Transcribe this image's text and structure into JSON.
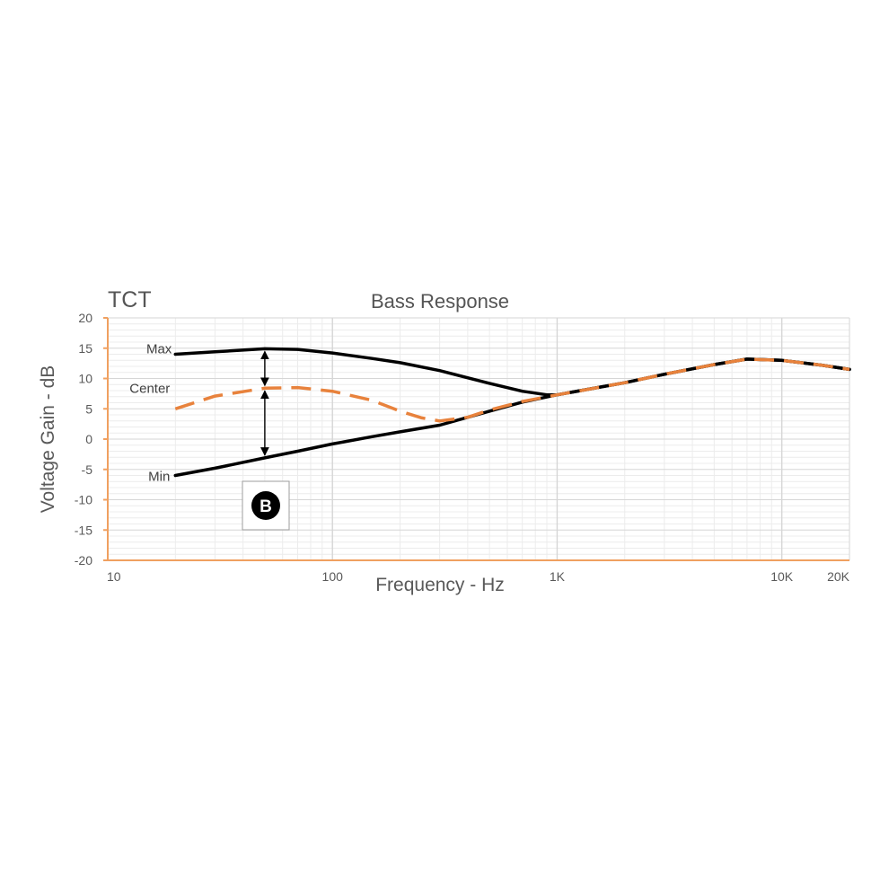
{
  "brand_label": "TCT",
  "badge_label": "B",
  "chart_data": {
    "type": "line",
    "title": "Bass Response",
    "xlabel": "Frequency - Hz",
    "ylabel": "Voltage Gain - dB",
    "xscale": "log",
    "xlim": [
      10,
      20000
    ],
    "ylim": [
      -20,
      20
    ],
    "yticks": [
      20,
      15,
      10,
      5,
      0,
      -5,
      -10,
      -15,
      -20
    ],
    "ytick_labels": [
      "20",
      "15",
      "10",
      "5",
      "0",
      "-5",
      "-10",
      "-15",
      "-20"
    ],
    "xticks": [
      10,
      100,
      1000,
      10000,
      20000
    ],
    "xtick_labels": [
      "10",
      "100",
      "1K",
      "10K",
      "20K"
    ],
    "grid": true,
    "colors": {
      "axis": "#f0a060",
      "grid_major": "#d6d6d6",
      "grid_minor": "#ececec",
      "max_min": "#000000",
      "center": "#e8823c"
    },
    "series": [
      {
        "name": "Max",
        "style": "solid",
        "x": [
          20,
          30,
          50,
          70,
          100,
          150,
          200,
          300,
          500,
          700,
          900,
          1000,
          2000,
          3000,
          5000,
          7000,
          10000,
          15000,
          20000
        ],
        "y": [
          14,
          14.4,
          14.9,
          14.8,
          14.2,
          13.3,
          12.6,
          11.3,
          9.2,
          7.9,
          7.3,
          7.3,
          9.3,
          10.7,
          12.3,
          13.2,
          13.0,
          12.2,
          11.5
        ]
      },
      {
        "name": "Center",
        "style": "dashed",
        "x": [
          20,
          30,
          50,
          70,
          100,
          150,
          200,
          250,
          300,
          400,
          500,
          700,
          1000,
          2000,
          3000,
          5000,
          7000,
          10000,
          15000,
          20000
        ],
        "y": [
          5,
          7.1,
          8.4,
          8.5,
          7.9,
          6.4,
          4.6,
          3.5,
          3.0,
          3.6,
          4.8,
          6.2,
          7.3,
          9.3,
          10.7,
          12.3,
          13.2,
          13.0,
          12.2,
          11.5
        ]
      },
      {
        "name": "Min",
        "style": "solid",
        "x": [
          20,
          30,
          50,
          70,
          100,
          150,
          200,
          300,
          500,
          700,
          1000,
          2000,
          3000,
          5000,
          7000,
          10000,
          15000,
          20000
        ],
        "y": [
          -6,
          -4.8,
          -3.1,
          -2.0,
          -0.8,
          0.4,
          1.2,
          2.3,
          4.6,
          6.1,
          7.3,
          9.3,
          10.7,
          12.3,
          13.2,
          13.0,
          12.2,
          11.5
        ]
      }
    ],
    "annotations": [
      {
        "type": "double-arrow",
        "x": 50,
        "y_from": 14.9,
        "y_to": 8.4
      },
      {
        "type": "double-arrow",
        "x": 50,
        "y_from": 8.4,
        "y_to": -3.1
      }
    ]
  }
}
